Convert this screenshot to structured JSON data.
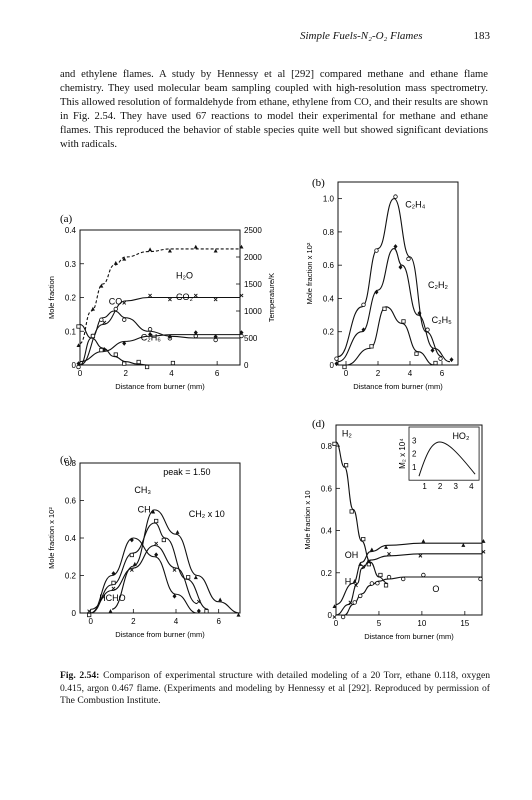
{
  "header": {
    "running_title": "Simple Fuels-N₂-O₂ Flames",
    "page_number": "183"
  },
  "paragraph": "and ethylene flames. A study by Hennessy et al [292] compared methane and ethane flame chemistry. They used molecular beam sampling coupled with high-resolution mass spectrometry. This allowed resolution of formaldehyde from ethane, ethylene from CO, and their results are shown in Fig. 2.54. They have used 67 reactions to model their experimental for methane and ethane flames. This reproduced the behavior of stable species quite well but showed significant deviations with radicals.",
  "caption": {
    "label": "Fig. 2.54:",
    "text": "Comparison of experimental structure with detailed modeling of a 20 Torr, ethane 0.118, oxygen 0.415, argon 0.467 flame. (Experiments and modeling by Hennessy et al [292]. Reproduced by permission of The Combustion Institute."
  },
  "chart_data": [
    {
      "panel": "(a)",
      "type": "line",
      "xlabel": "Distance from burner (mm)",
      "ylabel": "Mole fraction",
      "y2label": "Temperature/K",
      "xlim": [
        0,
        7
      ],
      "ylim": [
        0,
        0.4
      ],
      "y2lim": [
        0,
        2500
      ],
      "xticks": [
        "0",
        "2",
        "4",
        "6"
      ],
      "yticks": [
        "0",
        "0.1",
        "0.2",
        "0.3",
        "0.4"
      ],
      "y2ticks": [
        "0",
        "500",
        "1000",
        "1500",
        "2000",
        "2500"
      ],
      "annotations": [
        "CO",
        "H₂O",
        "CO₂",
        "C₂H₆"
      ],
      "series": [
        {
          "name": "H₂O",
          "x": [
            0,
            1,
            2,
            3,
            4,
            5,
            6,
            7
          ],
          "y": [
            0.0,
            0.12,
            0.19,
            0.2,
            0.2,
            0.2,
            0.2,
            0.2
          ]
        },
        {
          "name": "CO",
          "x": [
            0,
            0.5,
            1,
            1.5,
            2,
            3,
            4,
            5,
            6,
            7
          ],
          "y": [
            0.0,
            0.08,
            0.14,
            0.16,
            0.14,
            0.1,
            0.085,
            0.08,
            0.08,
            0.08
          ]
        },
        {
          "name": "CO₂",
          "x": [
            0,
            1,
            2,
            3,
            4,
            5,
            6,
            7
          ],
          "y": [
            0.01,
            0.04,
            0.07,
            0.085,
            0.09,
            0.09,
            0.09,
            0.09
          ]
        },
        {
          "name": "C₂H₆",
          "x": [
            0,
            0.5,
            1,
            1.5,
            2,
            2.5,
            3,
            4
          ],
          "y": [
            0.12,
            0.08,
            0.05,
            0.025,
            0.01,
            0.003,
            0.0,
            0.0
          ]
        },
        {
          "name": "Temperature",
          "x": [
            0,
            0.5,
            1,
            1.5,
            2,
            3,
            4,
            5,
            6,
            7
          ],
          "y": [
            400,
            1000,
            1500,
            1850,
            2000,
            2100,
            2150,
            2150,
            2150,
            2150
          ]
        }
      ]
    },
    {
      "panel": "(b)",
      "type": "line",
      "xlabel": "Distance from burner (mm)",
      "ylabel": "Mole fraction x 10²",
      "xlim": [
        -0.5,
        7
      ],
      "ylim": [
        0,
        1.1
      ],
      "xticks": [
        "0",
        "2",
        "4",
        "6"
      ],
      "yticks": [
        "0",
        "0.2",
        "0.4",
        "0.6",
        "0.8",
        "1.0"
      ],
      "annotations": [
        "C₂H₄",
        "C₂H₂",
        "C₂H₅"
      ],
      "series": [
        {
          "name": "C₂H₄",
          "x": [
            -0.5,
            1,
            2,
            3,
            4,
            5,
            6
          ],
          "y": [
            0.05,
            0.35,
            0.7,
            1.0,
            0.65,
            0.2,
            0.05
          ]
        },
        {
          "name": "C₂H₂",
          "x": [
            -0.5,
            1,
            2,
            3,
            3.5,
            4.5,
            5.5,
            6.5
          ],
          "y": [
            0.02,
            0.2,
            0.45,
            0.7,
            0.6,
            0.3,
            0.1,
            0.02
          ]
        },
        {
          "name": "C₂H₅",
          "x": [
            0,
            1.5,
            2.5,
            3.5,
            4.5,
            5.5
          ],
          "y": [
            0.0,
            0.1,
            0.35,
            0.25,
            0.08,
            0.0
          ]
        }
      ]
    },
    {
      "panel": "(c)",
      "type": "line",
      "xlabel": "Distance from burner (mm)",
      "ylabel": "Mole fraction x 10²",
      "xlim": [
        -0.5,
        7
      ],
      "ylim": [
        0,
        0.8
      ],
      "xticks": [
        "0",
        "2",
        "4",
        "6"
      ],
      "yticks": [
        "0",
        "0.2",
        "0.4",
        "0.6",
        "0.8"
      ],
      "annotations": [
        "peak = 1.50",
        "CH₃",
        "CH₄",
        "CH₂ x 10",
        "HCHO"
      ],
      "series": [
        {
          "name": "CH₃",
          "x": [
            0,
            1,
            2,
            3,
            4,
            5
          ],
          "y": [
            0.0,
            0.2,
            0.4,
            0.3,
            0.1,
            0.0
          ]
        },
        {
          "name": "CH₄",
          "x": [
            0,
            1,
            2,
            3,
            3.5,
            4.5,
            5.5
          ],
          "y": [
            0.0,
            0.15,
            0.32,
            0.48,
            0.4,
            0.18,
            0.02
          ]
        },
        {
          "name": "CH₂ x 10",
          "x": [
            1,
            2,
            3,
            4,
            5,
            6,
            7
          ],
          "y": [
            0.02,
            0.25,
            0.55,
            0.42,
            0.2,
            0.06,
            0.0
          ]
        },
        {
          "name": "HCHO",
          "x": [
            0,
            1,
            2,
            3,
            4,
            5
          ],
          "y": [
            0.02,
            0.12,
            0.24,
            0.36,
            0.24,
            0.05
          ]
        }
      ]
    },
    {
      "panel": "(d)",
      "type": "line",
      "xlabel": "Distance from burner (mm)",
      "ylabel": "Mole fraction x 10",
      "xlim": [
        0,
        17
      ],
      "ylim": [
        0,
        0.9
      ],
      "xticks": [
        "0",
        "5",
        "10",
        "15"
      ],
      "yticks": [
        "0",
        "0.2",
        "0.4",
        "0.6",
        "0.8"
      ],
      "annotations": [
        "H₂",
        "OH",
        "H",
        "O",
        "HO₂"
      ],
      "inset": {
        "ylabel": "M₂ x 10⁴",
        "yticks": [
          "1",
          "2",
          "3"
        ],
        "xticks": [
          "1",
          "2",
          "3",
          "4"
        ],
        "label": "HO₂"
      },
      "series": [
        {
          "name": "H₂",
          "x": [
            0,
            1,
            2,
            3,
            4,
            5,
            6
          ],
          "y": [
            0.82,
            0.7,
            0.5,
            0.35,
            0.25,
            0.18,
            0.15
          ]
        },
        {
          "name": "OH",
          "x": [
            0,
            2,
            3,
            4,
            6,
            10,
            15,
            17
          ],
          "y": [
            0.05,
            0.15,
            0.25,
            0.3,
            0.33,
            0.34,
            0.34,
            0.34
          ]
        },
        {
          "name": "H",
          "x": [
            0,
            1.5,
            2.5,
            3,
            4,
            6,
            10,
            17
          ],
          "y": [
            0.0,
            0.05,
            0.15,
            0.22,
            0.26,
            0.28,
            0.29,
            0.29
          ]
        },
        {
          "name": "O",
          "x": [
            1,
            2,
            3,
            4,
            5,
            6,
            8,
            10,
            17
          ],
          "y": [
            0.0,
            0.05,
            0.1,
            0.14,
            0.16,
            0.17,
            0.18,
            0.18,
            0.18
          ]
        }
      ]
    }
  ]
}
